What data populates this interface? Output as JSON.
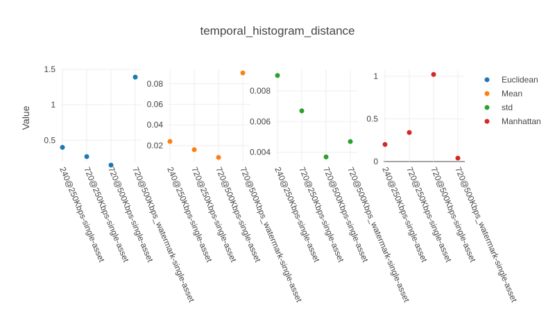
{
  "chart_data": {
    "type": "scatter",
    "title": "temporal_histogram_distance",
    "ylabel": "Value",
    "categories": [
      "240@250Kbps-single-asset",
      "720@250Kbps-single-asset",
      "720@500Kbps-single-asset",
      "720@500Kbps_watermark-single-asset"
    ],
    "legend_position": "right",
    "grid": true,
    "panels": [
      {
        "series": "Euclidean",
        "color": "#1f77b4",
        "ylim": [
          0.2,
          1.5
        ],
        "yticks": [
          0.5,
          1,
          1.5
        ],
        "ytick_labels": [
          "0.5",
          "1",
          "1.5"
        ],
        "values": [
          0.4,
          0.27,
          0.15,
          1.39
        ]
      },
      {
        "series": "Mean",
        "color": "#ff7f0e",
        "ylim": [
          0.0045,
          0.094
        ],
        "yticks": [
          0.02,
          0.04,
          0.06,
          0.08
        ],
        "ytick_labels": [
          "0.02",
          "0.04",
          "0.06",
          "0.08"
        ],
        "values": [
          0.024,
          0.016,
          0.0085,
          0.0905
        ]
      },
      {
        "series": "std",
        "color": "#2ca02c",
        "ylim": [
          0.0034,
          0.0094
        ],
        "yticks": [
          0.004,
          0.006,
          0.008
        ],
        "ytick_labels": [
          "0.004",
          "0.006",
          "0.008"
        ],
        "values": [
          0.009,
          0.0067,
          0.0037,
          0.0047
        ]
      },
      {
        "series": "Manhattan",
        "color": "#d62728",
        "ylim": [
          0,
          1.08
        ],
        "yticks": [
          0,
          0.5,
          1
        ],
        "ytick_labels": [
          "0",
          "0.5",
          "1"
        ],
        "values": [
          0.2,
          0.34,
          1.02,
          0.04
        ]
      }
    ],
    "legend": [
      "Euclidean",
      "Mean",
      "std",
      "Manhattan"
    ]
  }
}
